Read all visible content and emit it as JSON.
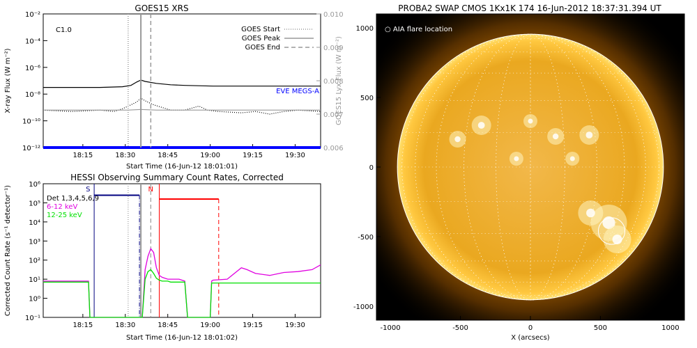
{
  "chart_data": [
    {
      "type": "line",
      "title": "GOES15 XRS",
      "xlabel": "Start Time (16-Jun-12 18:01:01)",
      "ylabel": "X-ray Flux (W m⁻²)",
      "ylabel_right": "GOES15 Lyx Flux (W m⁻²)",
      "x_ticks": [
        "18:15",
        "18:30",
        "18:45",
        "19:00",
        "19:15",
        "19:30"
      ],
      "x_tick_minutes": [
        14,
        29,
        44,
        59,
        74,
        89
      ],
      "xlim_minutes": [
        0,
        98
      ],
      "y_scale": "log",
      "ylim_exp": [
        -12,
        -2
      ],
      "y_ticks_exp": [
        -12,
        -10,
        -8,
        -6,
        -4,
        -2
      ],
      "y_right_ticks": [
        "0.006",
        "0.007",
        "0.008",
        "0.009",
        "0.010"
      ],
      "annotation": "C1.0",
      "legend": [
        {
          "label": "GOES Start",
          "style": "dotted"
        },
        {
          "label": "GOES Peak",
          "style": "solid"
        },
        {
          "label": "GOES End",
          "style": "dashed"
        }
      ],
      "legend_position": "top-right",
      "eve_label": "EVE MEGS-A",
      "events_minutes": {
        "start": 30,
        "peak": 34.5,
        "end": 38
      },
      "series": [
        {
          "color": "#000000",
          "style": "solid",
          "x": [
            0,
            10,
            20,
            28,
            31,
            33,
            34.5,
            36,
            40,
            45,
            50,
            60,
            70,
            80,
            90,
            98
          ],
          "y_exp": [
            -7.5,
            -7.5,
            -7.5,
            -7.45,
            -7.35,
            -7.1,
            -6.95,
            -7.05,
            -7.2,
            -7.3,
            -7.35,
            -7.4,
            -7.4,
            -7.4,
            -7.4,
            -7.4
          ]
        },
        {
          "color": "#000000",
          "style": "dotted",
          "x": [
            0,
            10,
            20,
            25,
            28,
            31,
            33,
            34.5,
            36,
            39,
            42,
            45,
            50,
            55,
            58,
            62,
            70,
            75,
            80,
            85,
            90,
            98
          ],
          "y_exp": [
            -9.2,
            -9.3,
            -9.2,
            -9.3,
            -9.1,
            -8.8,
            -8.6,
            -8.3,
            -8.5,
            -8.8,
            -9.0,
            -9.2,
            -9.2,
            -8.9,
            -9.2,
            -9.3,
            -9.4,
            -9.3,
            -9.5,
            -9.3,
            -9.2,
            -9.3
          ]
        },
        {
          "color": "#999999",
          "style": "solid",
          "x": [
            0,
            30,
            34.5,
            40,
            98
          ],
          "y_exp": [
            -9.2,
            -9.2,
            -9.15,
            -9.2,
            -9.2
          ]
        },
        {
          "color": "#0000ff",
          "style": "solid",
          "x": [
            0,
            98
          ],
          "y_exp": [
            -12,
            -12
          ]
        }
      ]
    },
    {
      "type": "line",
      "title": "HESSI Observing Summary Count Rates, Corrected",
      "xlabel": "Start Time (16-Jun-12 18:01:02)",
      "ylabel": "Corrected Count Rate (s⁻¹ detector⁻¹)",
      "x_ticks": [
        "18:15",
        "18:30",
        "18:45",
        "19:00",
        "19:15",
        "19:30"
      ],
      "x_tick_minutes": [
        14,
        29,
        44,
        59,
        74,
        89
      ],
      "xlim_minutes": [
        0,
        98
      ],
      "y_scale": "log",
      "ylim_exp": [
        -1,
        6
      ],
      "y_ticks_exp": [
        -1,
        0,
        1,
        2,
        3,
        4,
        5,
        6
      ],
      "legend": [
        {
          "label": "Det 1,3,4,5,6,9",
          "color": "#000000"
        },
        {
          "label": "6-12 keV",
          "color": "#e000e0"
        },
        {
          "label": "12-25 keV",
          "color": "#00e000"
        }
      ],
      "legend_position": "top-left",
      "markers": [
        {
          "label": "S",
          "minute": 18,
          "color": "#000080"
        },
        {
          "label": "N",
          "minute": 40,
          "color": "#ff0000"
        }
      ],
      "series": [
        {
          "name": "6-12 keV",
          "color": "#e000e0",
          "x": [
            0,
            16,
            16.5,
            35,
            36,
            37,
            38,
            39,
            40,
            41,
            42,
            43,
            44,
            45,
            46,
            47,
            48,
            49,
            50,
            51,
            59,
            59.5,
            60,
            65,
            70,
            72,
            75,
            80,
            85,
            90,
            95,
            98
          ],
          "y_exp": [
            0.9,
            0.9,
            -1,
            -1,
            1.5,
            2.2,
            2.6,
            2.4,
            1.6,
            1.2,
            1.1,
            1.05,
            1.0,
            1.0,
            1.0,
            1.0,
            1.0,
            0.95,
            0.9,
            -1,
            -1,
            0.9,
            0.95,
            1.0,
            1.6,
            1.5,
            1.3,
            1.2,
            1.35,
            1.4,
            1.5,
            1.75
          ]
        },
        {
          "name": "12-25 keV",
          "color": "#00e000",
          "x": [
            0,
            16,
            16.5,
            35,
            36,
            37,
            38,
            39,
            40,
            41,
            42,
            43,
            44,
            45,
            46,
            47,
            48,
            49,
            50,
            51,
            59,
            59.5,
            60,
            70,
            80,
            90,
            98
          ],
          "y_exp": [
            0.85,
            0.85,
            -1,
            -1,
            1.0,
            1.4,
            1.5,
            1.3,
            1.05,
            0.95,
            0.9,
            0.9,
            0.9,
            0.85,
            0.85,
            0.85,
            0.85,
            0.85,
            0.85,
            -1,
            -1,
            0.8,
            0.8,
            0.8,
            0.8,
            0.8,
            0.8
          ]
        }
      ],
      "attenuator_lines": [
        {
          "label": "S",
          "color": "#000080",
          "from": 18,
          "to": 34,
          "y_exp": 5.4
        },
        {
          "label": "N",
          "color": "#ff0000",
          "from": 41,
          "to": 62,
          "y_exp": 5.2
        }
      ]
    },
    {
      "type": "heatmap",
      "title": "PROBA2 SWAP CMOS 1Kx1K 174 16-Jun-2012 18:37:31.394 UT",
      "xlabel": "X (arcsecs)",
      "annotation": "○ AIA flare location",
      "x_ticks": [
        "-1000",
        "-500",
        "0",
        "500",
        "1000"
      ],
      "y_ticks": [
        "1000",
        "500",
        "0",
        "-500",
        "-1000"
      ],
      "xlim": [
        -1100,
        1100
      ],
      "ylim": [
        -1100,
        1100
      ],
      "solar_radius_arcsec": 950,
      "flare_location": {
        "x": 580,
        "y": -460,
        "radius_arcsec": 95
      },
      "colors": {
        "background": "#000000",
        "sun_core": "#f0b030",
        "sun_edge": "#d08000",
        "limb": "#ffffff"
      }
    }
  ]
}
